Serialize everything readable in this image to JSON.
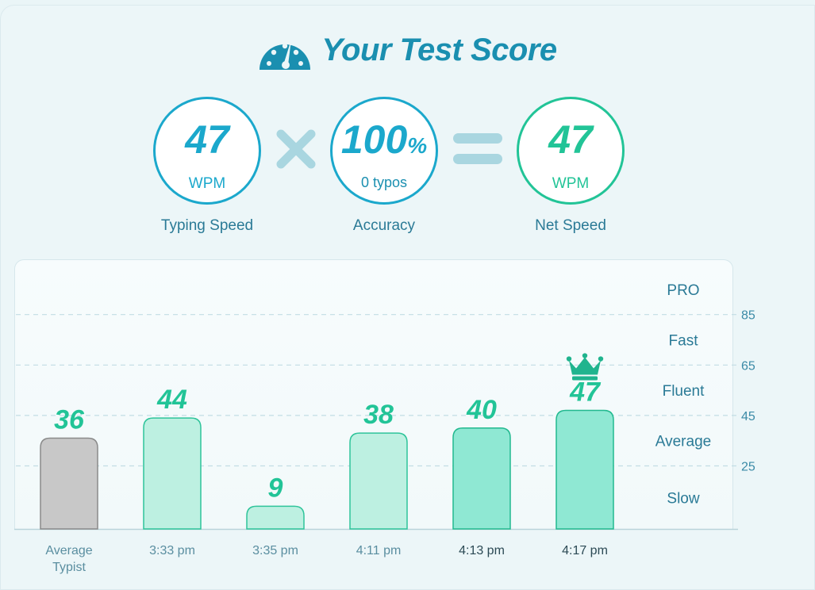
{
  "header": {
    "title": "Your Test Score",
    "icon": "speedometer-icon"
  },
  "scores": {
    "typing_speed": {
      "value": "47",
      "unit": "WPM",
      "label": "Typing Speed"
    },
    "accuracy": {
      "value": "100",
      "unit_suffix": "%",
      "sub": "0 typos",
      "label": "Accuracy"
    },
    "net_speed": {
      "value": "47",
      "unit": "WPM",
      "label": "Net Speed"
    }
  },
  "colors": {
    "accent_blue": "#1ba8cc",
    "accent_green": "#22c497",
    "bar_gray": "#c8c8c8",
    "bar_light": "#bdf0e1",
    "bar_mid": "#8fe8d3"
  },
  "chart_data": {
    "type": "bar",
    "categories": [
      "Average Typist",
      "3:33 pm",
      "3:35 pm",
      "4:11 pm",
      "4:13 pm",
      "4:17 pm"
    ],
    "values": [
      36,
      44,
      9,
      38,
      40,
      47
    ],
    "ylim": [
      0,
      105
    ],
    "yticks": [
      25,
      45,
      65,
      85
    ],
    "bands": [
      {
        "label": "Slow",
        "from": 0,
        "to": 25
      },
      {
        "label": "Average",
        "from": 25,
        "to": 45
      },
      {
        "label": "Fluent",
        "from": 45,
        "to": 65
      },
      {
        "label": "Fast",
        "from": 65,
        "to": 85
      },
      {
        "label": "PRO",
        "from": 85,
        "to": 105
      }
    ],
    "bar_styles": [
      "gray",
      "light",
      "light",
      "light",
      "mid",
      "mid"
    ],
    "dark_labels": [
      false,
      false,
      false,
      false,
      true,
      true
    ],
    "best_index": 5,
    "best_icon": "crown-icon",
    "grid": true
  }
}
